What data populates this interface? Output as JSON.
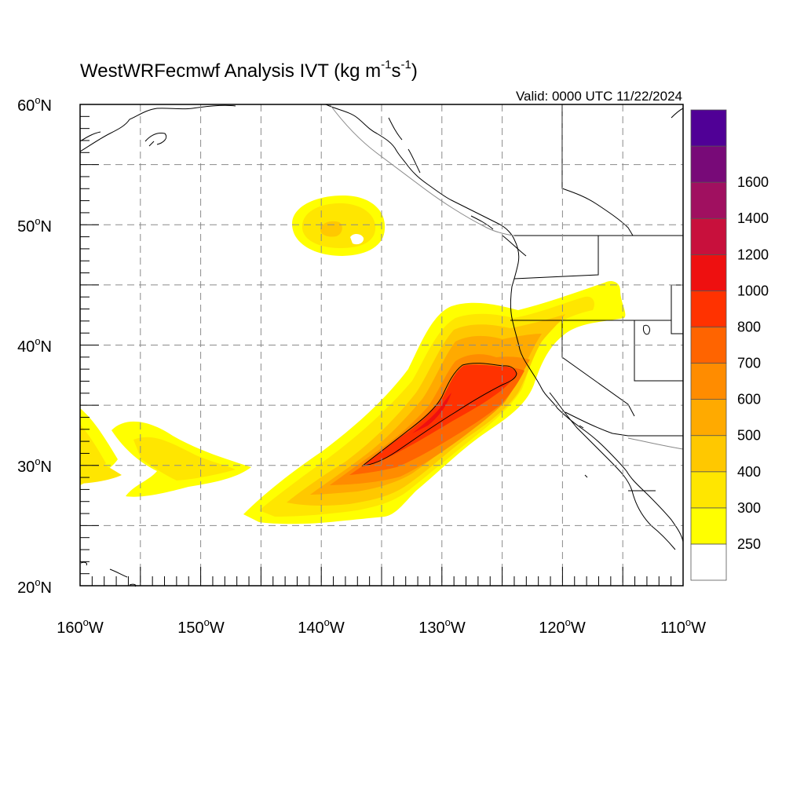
{
  "title": {
    "main": "WestWRFecmwf Analysis IVT (kg m",
    "sup1": "-1",
    "mid": "s",
    "sup2": "-1",
    "close": ")"
  },
  "valid_label": "Valid: 0000 UTC 11/22/2024",
  "map": {
    "lon_range": [
      -160,
      -110
    ],
    "lat_range": [
      20,
      60
    ],
    "lat_labels": [
      {
        "lat": 60,
        "num": "60",
        "deg": "o",
        "hem": "N"
      },
      {
        "lat": 50,
        "num": "50",
        "deg": "o",
        "hem": "N"
      },
      {
        "lat": 40,
        "num": "40",
        "deg": "o",
        "hem": "N"
      },
      {
        "lat": 30,
        "num": "30",
        "deg": "o",
        "hem": "N"
      },
      {
        "lat": 20,
        "num": "20",
        "deg": "o",
        "hem": "N"
      }
    ],
    "lon_labels": [
      {
        "lon": -160,
        "num": "160",
        "deg": "o",
        "hem": "W"
      },
      {
        "lon": -150,
        "num": "150",
        "deg": "o",
        "hem": "W"
      },
      {
        "lon": -140,
        "num": "140",
        "deg": "o",
        "hem": "W"
      },
      {
        "lon": -130,
        "num": "130",
        "deg": "o",
        "hem": "W"
      },
      {
        "lon": -120,
        "num": "120",
        "deg": "o",
        "hem": "W"
      },
      {
        "lon": -110,
        "num": "110",
        "deg": "o",
        "hem": "W"
      }
    ],
    "grid_lons": [
      -155,
      -150,
      -145,
      -140,
      -135,
      -130,
      -125,
      -120,
      -115
    ],
    "grid_lats": [
      25,
      30,
      35,
      40,
      45,
      50,
      55
    ],
    "colorbar": {
      "colors": [
        "#ffffff",
        "#ffff00",
        "#ffe600",
        "#ffc800",
        "#ffaa00",
        "#ff8c00",
        "#ff6400",
        "#ff3200",
        "#ee1010",
        "#c8103c",
        "#a01060",
        "#780a78",
        "#500096"
      ],
      "labels": [
        "250",
        "300",
        "400",
        "500",
        "600",
        "700",
        "800",
        "1000",
        "1200",
        "1400",
        "1600"
      ]
    },
    "units": "kg m-1 s-1"
  }
}
